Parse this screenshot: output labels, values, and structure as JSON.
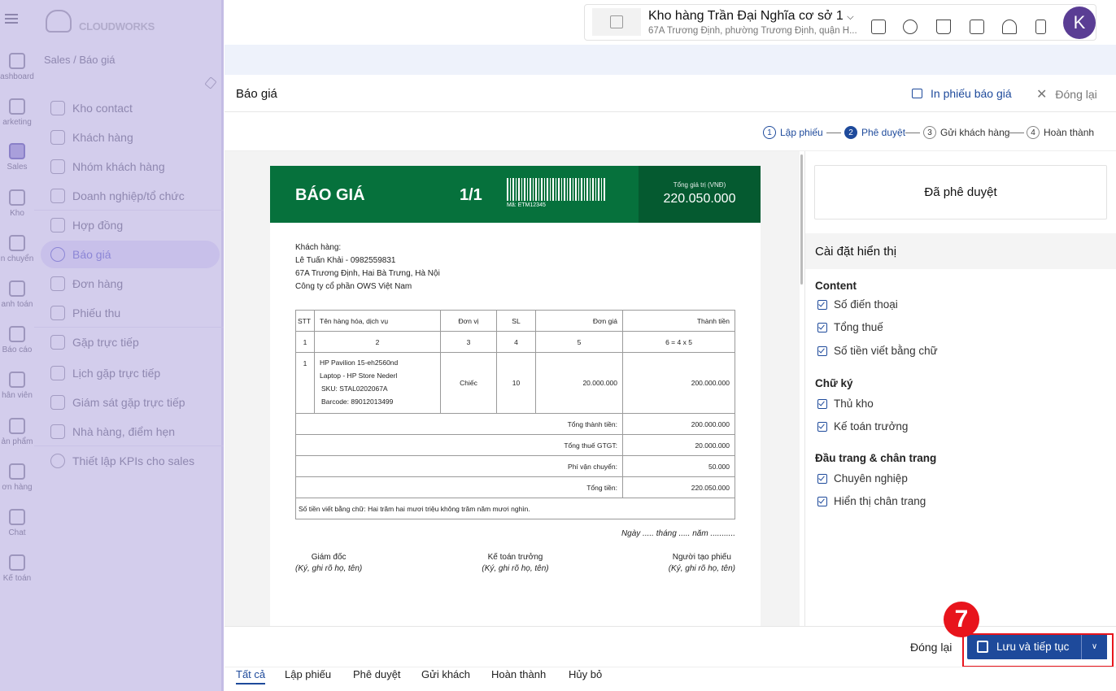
{
  "brand": {
    "logo_text": "CLOUDWORKS"
  },
  "breadcrumb": "Sales / Báo giá",
  "rail": [
    {
      "label": "ashboard",
      "icon": "dashboard-icon"
    },
    {
      "label": "arketing",
      "icon": "megaphone-icon"
    },
    {
      "label": "Sales",
      "icon": "sales-icon",
      "active": true
    },
    {
      "label": "Kho",
      "icon": "warehouse-icon"
    },
    {
      "label": "n chuyển",
      "icon": "truck-icon"
    },
    {
      "label": "anh toán",
      "icon": "card-icon"
    },
    {
      "label": "Báo cáo",
      "icon": "report-icon"
    },
    {
      "label": "hân viên",
      "icon": "employee-icon"
    },
    {
      "label": "ản phẩm",
      "icon": "box-icon"
    },
    {
      "label": "ơn hàng",
      "icon": "order-icon"
    },
    {
      "label": "Chat",
      "icon": "chat-icon"
    },
    {
      "label": "Kế toán",
      "icon": "calculator-icon"
    }
  ],
  "menu": [
    {
      "label": "Kho contact",
      "icon": "contact-book-icon"
    },
    {
      "label": "Khách hàng",
      "icon": "user-icon"
    },
    {
      "label": "Nhóm khách hàng",
      "icon": "group-icon"
    },
    {
      "label": "Doanh nghiệp/tổ chức",
      "icon": "building-icon"
    },
    {
      "label": "Hợp đồng",
      "icon": "contract-icon"
    },
    {
      "label": "Báo giá",
      "icon": "dollar-icon",
      "active": true
    },
    {
      "label": "Đơn hàng",
      "icon": "invoice-icon"
    },
    {
      "label": "Phiếu thu",
      "icon": "receipt-icon"
    },
    {
      "label": "Gặp trực tiếp",
      "icon": "meeting-icon"
    },
    {
      "label": "Lịch gặp trực tiếp",
      "icon": "calendar-icon"
    },
    {
      "label": "Giám sát gặp trực tiếp",
      "icon": "clipboard-icon"
    },
    {
      "label": "Nhà hàng, điểm hẹn",
      "icon": "coffee-icon"
    },
    {
      "label": "Thiết lập KPIs cho sales",
      "icon": "gear-icon"
    }
  ],
  "header": {
    "warehouse_name": "Kho hàng Trần Đại Nghĩa cơ sở 1",
    "warehouse_address": "67A Trương Định, phường Trương Định, quận H...",
    "avatar_letter": "K",
    "avatar_color": "#5a3d94",
    "icons": [
      "checkbox-icon",
      "camera-icon",
      "cart-icon",
      "message-icon",
      "bell-icon",
      "pos-icon"
    ]
  },
  "panel": {
    "title": "Báo giá",
    "print_label": "In phiếu báo giá",
    "close_label": "Đóng lại",
    "steps": [
      {
        "num": "1",
        "label": "Lập phiếu",
        "state": "done"
      },
      {
        "num": "2",
        "label": "Phê duyệt",
        "state": "current"
      },
      {
        "num": "3",
        "label": "Gửi khách hàng",
        "state": "todo"
      },
      {
        "num": "4",
        "label": "Hoàn thành",
        "state": "todo"
      }
    ]
  },
  "quote": {
    "title": "BÁO GIÁ",
    "page": "1/1",
    "code": "Mã: ETM12345",
    "total_label": "Tổng giá trị (VNĐ)",
    "total_value": "220.050.000",
    "header_color": "#06713c",
    "customer_label": "Khách hàng:",
    "customer_line1": "Lê Tuấn Khải - 0982559831",
    "customer_line2": "67A Trương Định, Hai Bà Trưng, Hà Nội",
    "customer_line3": "Công ty cổ phần OWS Việt Nam",
    "columns": [
      "STT",
      "Tên hàng hóa, dịch vụ",
      "Đơn vị",
      "SL",
      "Đơn giá",
      "Thành tiền"
    ],
    "column_index": [
      "1",
      "2",
      "3",
      "4",
      "5",
      "6 = 4 x 5"
    ],
    "items": [
      {
        "stt": "1",
        "name1": "HP Pavilion 15-eh2560nd",
        "name2": "Laptop - HP Store Nederl",
        "sku": "SKU: STAL0202067A",
        "barcode": "Barcode: 89012013499",
        "unit": "Chiếc",
        "qty": "10",
        "price": "20.000.000",
        "amount": "200.000.000"
      }
    ],
    "summary": [
      {
        "label": "Tổng thành tiền:",
        "value": "200.000.000"
      },
      {
        "label": "Tổng thuế GTGT:",
        "value": "20.000.000"
      },
      {
        "label": "Phí vận chuyển:",
        "value": "50.000"
      },
      {
        "label": "Tổng tiền:",
        "value": "220.050.000"
      }
    ],
    "in_words": "Số tiền viết bằng chữ: Hai trăm hai mươi triệu không trăm năm mươi nghìn.",
    "date_line": "Ngày ..... tháng ..... năm ...........",
    "signatures": [
      {
        "role": "Giám đốc",
        "note": "(Ký, ghi rõ họ, tên)"
      },
      {
        "role": "Kế toán trưởng",
        "note": "(Ký, ghi rõ họ, tên)"
      },
      {
        "role": "Người tạo phiếu",
        "note": "(Ký, ghi rõ họ, tên)"
      }
    ]
  },
  "settings": {
    "status": "Đã phê duyệt",
    "title": "Cài đặt hiển thị",
    "sections": [
      {
        "title": "Content",
        "options": [
          {
            "label": "Số điến thoại",
            "checked": true
          },
          {
            "label": "Tổng thuế",
            "checked": true
          },
          {
            "label": "Số tiền viết bằng chữ",
            "checked": true
          }
        ]
      },
      {
        "title": "Chữ ký",
        "options": [
          {
            "label": "Thủ kho",
            "checked": true
          },
          {
            "label": "Kế toán trưởng",
            "checked": true
          }
        ]
      },
      {
        "title": "Đầu trang & chân trang",
        "options": [
          {
            "label": "Chuyên nghiệp",
            "checked": true
          },
          {
            "label": "Hiển thị chân trang",
            "checked": true
          }
        ]
      }
    ]
  },
  "footer": {
    "close_label": "Đóng lại",
    "save_label": "Lưu và tiếp tục",
    "primary_color": "#1e4a9b"
  },
  "annotation": {
    "step_number": "7",
    "color": "#e8141c"
  },
  "tabs": [
    {
      "label": "Tất cả",
      "active": true
    },
    {
      "label": "Lập phiếu"
    },
    {
      "label": "Phê duyệt"
    },
    {
      "label": "Gửi khách"
    },
    {
      "label": "Hoàn thành"
    },
    {
      "label": "Hủy bỏ"
    }
  ]
}
